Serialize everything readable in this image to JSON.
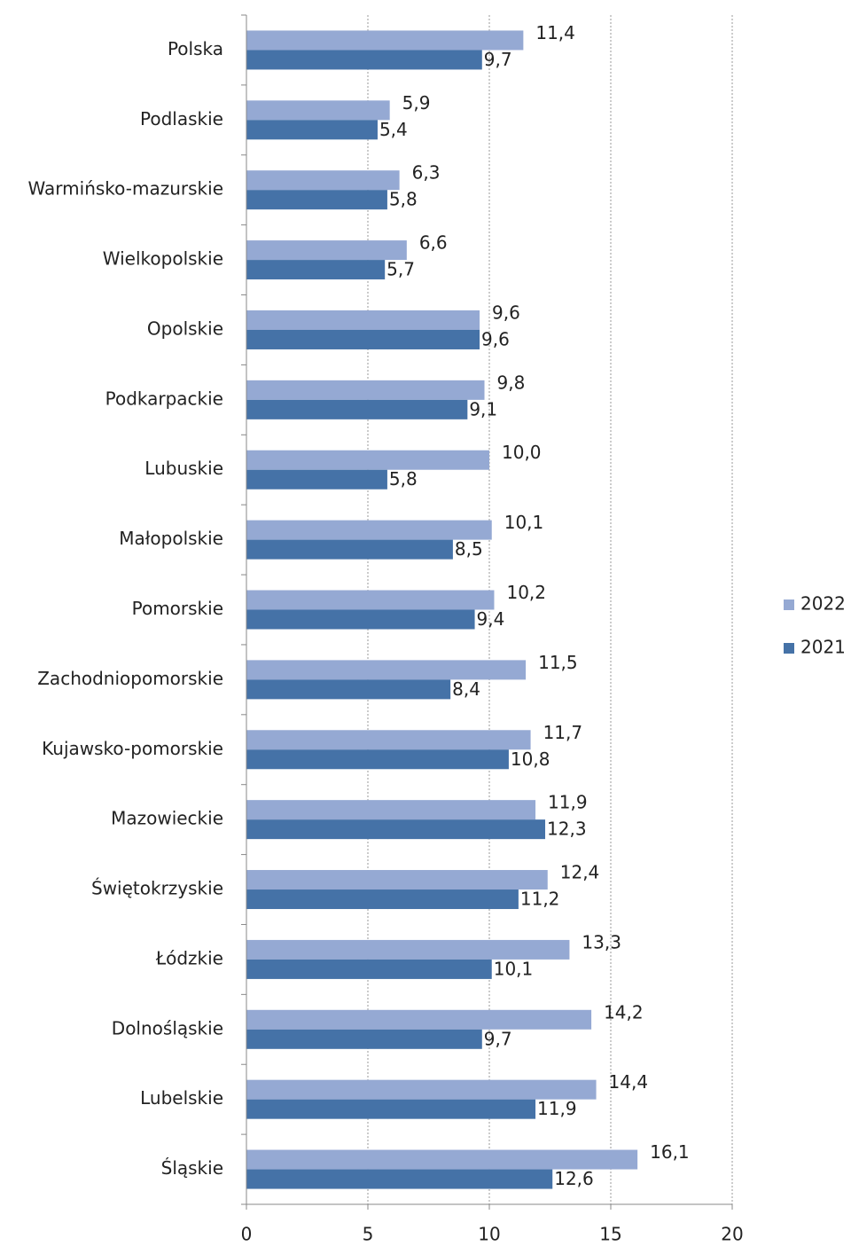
{
  "chart_data": {
    "type": "bar",
    "orientation": "horizontal",
    "categories": [
      "Polska",
      "Podlaskie",
      "Warmińsko-mazurskie",
      "Wielkopolskie",
      "Opolskie",
      "Podkarpackie",
      "Lubuskie",
      "Małopolskie",
      "Pomorskie",
      "Zachodniopomorskie",
      "Kujawsko-pomorskie",
      "Mazowieckie",
      "Świętokrzyskie",
      "Łódzkie",
      "Dolnośląskie",
      "Lubelskie",
      "Śląskie"
    ],
    "series": [
      {
        "name": "2022",
        "color": "#95a9d3",
        "values": [
          11.4,
          5.9,
          6.3,
          6.6,
          9.6,
          9.8,
          10.0,
          10.1,
          10.2,
          11.5,
          11.7,
          11.9,
          12.4,
          13.3,
          14.2,
          14.4,
          16.1
        ],
        "value_labels": [
          "11,4",
          "5,9",
          "6,3",
          "6,6",
          "9,6",
          "9,8",
          "10,0",
          "10,1",
          "10,2",
          "11,5",
          "11,7",
          "11,9",
          "12,4",
          "13,3",
          "14,2",
          "14,4",
          "16,1"
        ]
      },
      {
        "name": "2021",
        "color": "#4572a7",
        "values": [
          9.7,
          5.4,
          5.8,
          5.7,
          9.6,
          9.1,
          5.8,
          8.5,
          9.4,
          8.4,
          10.8,
          12.3,
          11.2,
          10.1,
          9.7,
          11.9,
          12.6
        ],
        "value_labels": [
          "9,7",
          "5,4",
          "5,8",
          "5,7",
          "9,6",
          "9,1",
          "5,8",
          "8,5",
          "9,4",
          "8,4",
          "10,8",
          "12,3",
          "11,2",
          "10,1",
          "9,7",
          "11,9",
          "12,6"
        ]
      }
    ],
    "xlim": [
      0,
      20
    ],
    "xticks": [
      0,
      5,
      10,
      15,
      20
    ],
    "grid": true,
    "legend": "right"
  }
}
